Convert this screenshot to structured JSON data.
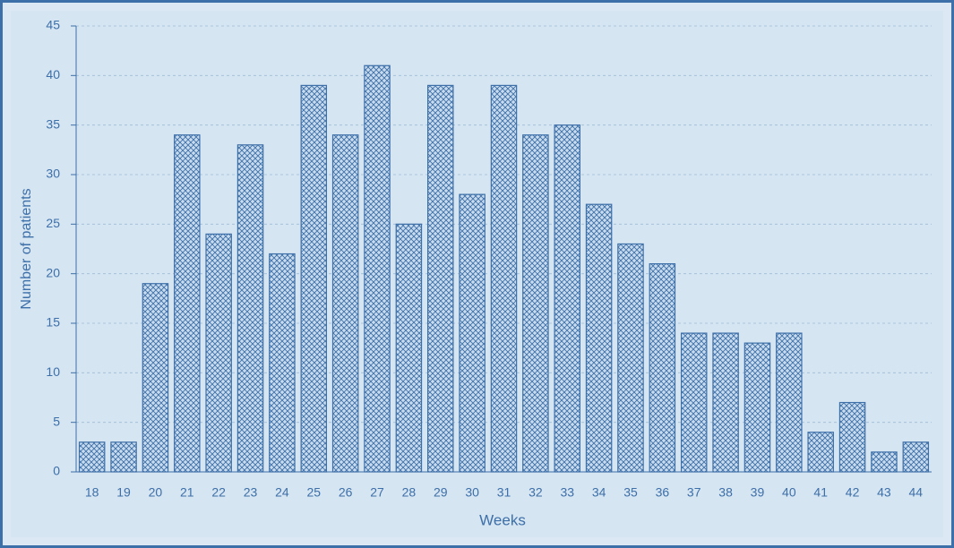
{
  "chart_data": {
    "type": "bar",
    "x_label": "Weeks",
    "y_label": "Number of patients",
    "categories": [
      "18",
      "19",
      "20",
      "21",
      "22",
      "23",
      "24",
      "25",
      "26",
      "27",
      "28",
      "29",
      "30",
      "31",
      "32",
      "33",
      "34",
      "35",
      "36",
      "37",
      "38",
      "39",
      "40",
      "41",
      "42",
      "43",
      "44"
    ],
    "values": [
      3,
      3,
      19,
      34,
      24,
      33,
      22,
      39,
      34,
      41,
      25,
      39,
      28,
      39,
      34,
      35,
      27,
      23,
      21,
      14,
      14,
      13,
      14,
      4,
      7,
      2,
      3
    ],
    "color": "#3d6fa8",
    "ylim": [
      0,
      45
    ],
    "yticks": [
      0,
      5,
      10,
      15,
      20,
      25,
      30,
      35,
      40,
      45
    ],
    "grid": true
  }
}
